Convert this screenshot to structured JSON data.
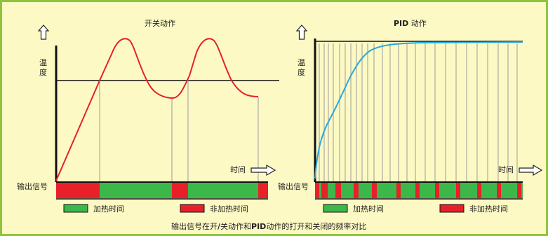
{
  "left": {
    "title": "开关动作",
    "y_label_1": "温",
    "y_label_2": "度",
    "time_label": "时间",
    "signal_label": "输出信号",
    "bar_segments": [
      {
        "state": "on",
        "from": 0.0,
        "to": 0.19
      },
      {
        "state": "off",
        "from": 0.19,
        "to": 0.54
      },
      {
        "state": "on",
        "from": 0.54,
        "to": 0.62
      },
      {
        "state": "off",
        "from": 0.62,
        "to": 0.95
      },
      {
        "state": "on",
        "from": 0.95,
        "to": 1.0
      }
    ]
  },
  "right": {
    "title_bold": "PID",
    "title_rest": " 动作",
    "y_label_1": "温",
    "y_label_2": "度",
    "time_label": "时间",
    "signal_label": "输出信号",
    "pulse_count": 12
  },
  "legend": {
    "heating_label": "加热时间",
    "non_heating_label": "非加热时间",
    "heating_color": "#3cb84a",
    "non_heating_color": "#e8202a"
  },
  "caption": {
    "part1": "输出信号在开",
    "slash": "/",
    "part2": "关动作和",
    "pid": "PID",
    "part3": "动作的打开和关闭的频率对比"
  },
  "colors": {
    "frame_bg": "#fdf9c4",
    "frame_border": "#8cc43c",
    "onoff_curve": "#e8202a",
    "pid_curve": "#29a8e0"
  }
}
